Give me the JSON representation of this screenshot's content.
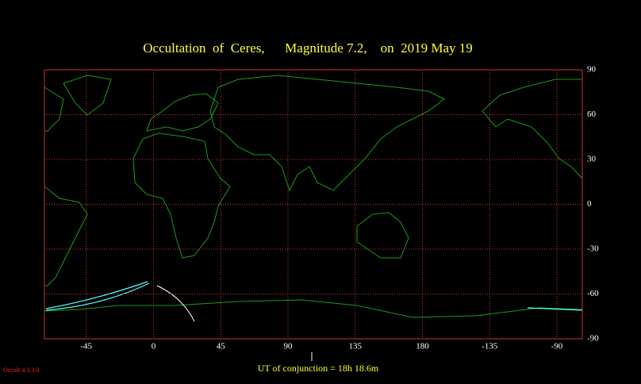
{
  "chart_data": {
    "type": "map",
    "title": "Occultation  of  Ceres,      Magnitude 7.2,    on  2019 May 19",
    "xlim": [
      -73,
      287
    ],
    "xticks": [
      -45,
      0,
      45,
      90,
      135,
      180,
      {
        "value": 225,
        "label": "-135"
      },
      {
        "value": 270,
        "label": "-90"
      }
    ],
    "ylim": [
      -90,
      90
    ],
    "yticks": [
      90,
      60,
      30,
      0,
      -30,
      -60,
      -90
    ],
    "grid": true,
    "footer": "UT of conjunction = 18h 18.6m",
    "version": "Occult 4.3.3.0"
  }
}
